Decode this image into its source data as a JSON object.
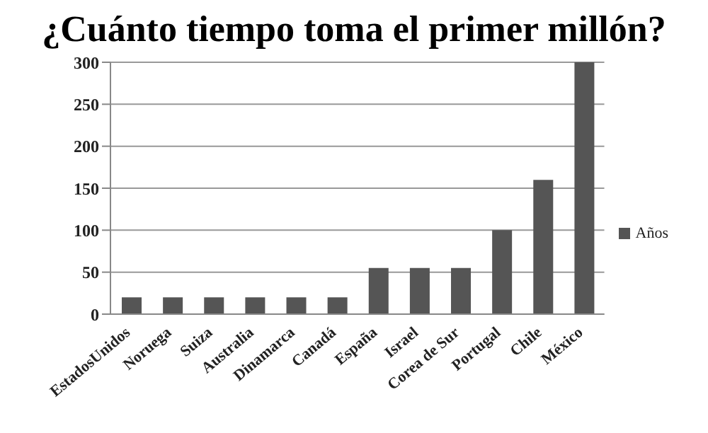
{
  "chart_data": {
    "type": "bar",
    "title": "¿Cuánto tiempo toma el primer millón?",
    "categories": [
      "EstadosUnidos",
      "Noruega",
      "Suiza",
      "Australia",
      "Dinamarca",
      "Canadá",
      "España",
      "Israel",
      "Corea de Sur",
      "Portugal",
      "Chile",
      "México"
    ],
    "series": [
      {
        "name": "Años",
        "color": "#555555",
        "values": [
          20,
          20,
          20,
          20,
          20,
          20,
          55,
          55,
          55,
          100,
          160,
          300
        ]
      }
    ],
    "ylim": [
      0,
      300
    ],
    "yticks": [
      0,
      50,
      100,
      150,
      200,
      250,
      300
    ],
    "grid": "y",
    "legend": "right"
  }
}
